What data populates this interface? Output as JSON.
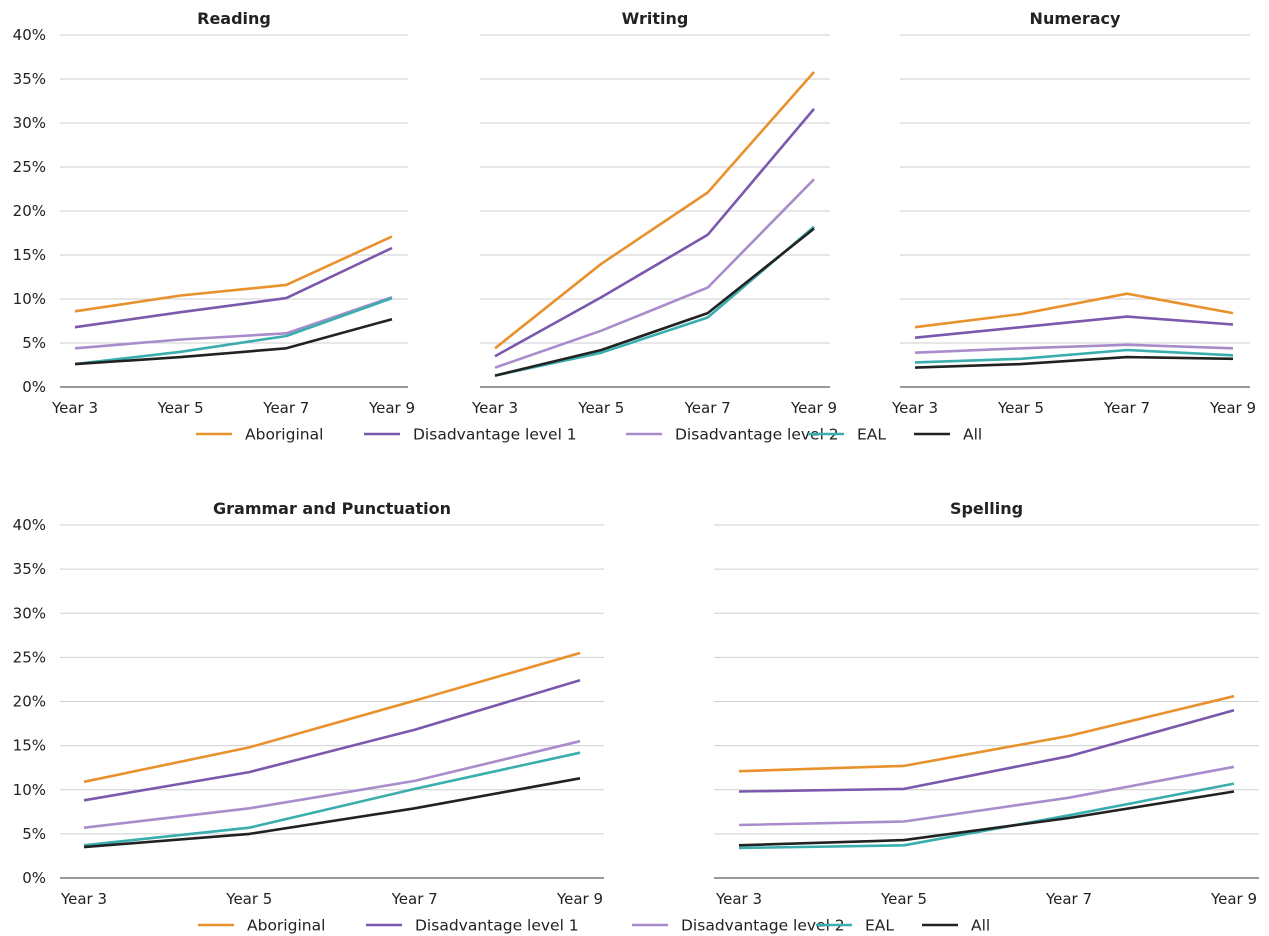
{
  "chart_data": [
    {
      "type": "line",
      "title": "Reading",
      "categories": [
        "Year 3",
        "Year 5",
        "Year 7",
        "Year 9"
      ],
      "ylim": [
        0,
        40
      ],
      "yticks": [
        "0%",
        "5%",
        "10%",
        "15%",
        "20%",
        "25%",
        "30%",
        "35%",
        "40%"
      ],
      "grid": true,
      "series": [
        {
          "name": "Aboriginal",
          "color": "#e8912d",
          "values": [
            8.6,
            10.4,
            11.6,
            17.1
          ]
        },
        {
          "name": "Disadvantage level 1",
          "color": "#7a58ac",
          "values": [
            6.8,
            8.5,
            10.1,
            15.8
          ]
        },
        {
          "name": "Disadvantage level 2",
          "color": "#a98ccb",
          "values": [
            4.4,
            5.4,
            6.1,
            10.2
          ]
        },
        {
          "name": "EAL",
          "color": "#3aaeae",
          "values": [
            2.6,
            4.0,
            5.8,
            10.1
          ]
        },
        {
          "name": "All",
          "color": "#222222",
          "values": [
            2.6,
            3.4,
            4.4,
            7.7
          ]
        }
      ]
    },
    {
      "type": "line",
      "title": "Writing",
      "categories": [
        "Year 3",
        "Year 5",
        "Year 7",
        "Year 9"
      ],
      "ylim": [
        0,
        40
      ],
      "grid": true,
      "series": [
        {
          "name": "Aboriginal",
          "color": "#e8912d",
          "values": [
            4.4,
            14.0,
            22.1,
            35.8
          ]
        },
        {
          "name": "Disadvantage level 1",
          "color": "#7a58ac",
          "values": [
            3.5,
            10.2,
            17.3,
            31.6
          ]
        },
        {
          "name": "Disadvantage level 2",
          "color": "#a98ccb",
          "values": [
            2.2,
            6.4,
            11.3,
            23.6
          ]
        },
        {
          "name": "EAL",
          "color": "#3aaeae",
          "values": [
            1.3,
            3.9,
            7.9,
            18.2
          ]
        },
        {
          "name": "All",
          "color": "#222222",
          "values": [
            1.3,
            4.2,
            8.4,
            18.0
          ]
        }
      ]
    },
    {
      "type": "line",
      "title": "Numeracy",
      "categories": [
        "Year 3",
        "Year 5",
        "Year 7",
        "Year 9"
      ],
      "ylim": [
        0,
        40
      ],
      "grid": true,
      "series": [
        {
          "name": "Aboriginal",
          "color": "#e8912d",
          "values": [
            6.8,
            8.3,
            10.6,
            8.4
          ]
        },
        {
          "name": "Disadvantage level 1",
          "color": "#7a58ac",
          "values": [
            5.6,
            6.8,
            8.0,
            7.1
          ]
        },
        {
          "name": "Disadvantage level 2",
          "color": "#a98ccb",
          "values": [
            3.9,
            4.4,
            4.8,
            4.4
          ]
        },
        {
          "name": "EAL",
          "color": "#3aaeae",
          "values": [
            2.8,
            3.2,
            4.2,
            3.6
          ]
        },
        {
          "name": "All",
          "color": "#222222",
          "values": [
            2.2,
            2.6,
            3.4,
            3.2
          ]
        }
      ]
    },
    {
      "type": "line",
      "title": "Grammar and Punctuation",
      "categories": [
        "Year 3",
        "Year 5",
        "Year 7",
        "Year 9"
      ],
      "ylim": [
        0,
        40
      ],
      "yticks": [
        "0%",
        "5%",
        "10%",
        "15%",
        "20%",
        "25%",
        "30%",
        "35%",
        "40%"
      ],
      "grid": true,
      "series": [
        {
          "name": "Aboriginal",
          "color": "#e8912d",
          "values": [
            10.9,
            14.8,
            20.1,
            25.5
          ]
        },
        {
          "name": "Disadvantage level 1",
          "color": "#7a58ac",
          "values": [
            8.8,
            12.0,
            16.8,
            22.4
          ]
        },
        {
          "name": "Disadvantage level 2",
          "color": "#a98ccb",
          "values": [
            5.7,
            7.9,
            11.0,
            15.5
          ]
        },
        {
          "name": "EAL",
          "color": "#3aaeae",
          "values": [
            3.7,
            5.7,
            10.1,
            14.2
          ]
        },
        {
          "name": "All",
          "color": "#222222",
          "values": [
            3.5,
            5.0,
            7.9,
            11.3
          ]
        }
      ]
    },
    {
      "type": "line",
      "title": "Spelling",
      "categories": [
        "Year 3",
        "Year 5",
        "Year 7",
        "Year 9"
      ],
      "ylim": [
        0,
        40
      ],
      "grid": true,
      "series": [
        {
          "name": "Aboriginal",
          "color": "#e8912d",
          "values": [
            12.1,
            12.7,
            16.1,
            20.6
          ]
        },
        {
          "name": "Disadvantage level 1",
          "color": "#7a58ac",
          "values": [
            9.8,
            10.1,
            13.8,
            19.0
          ]
        },
        {
          "name": "Disadvantage level 2",
          "color": "#a98ccb",
          "values": [
            6.0,
            6.4,
            9.1,
            12.6
          ]
        },
        {
          "name": "EAL",
          "color": "#3aaeae",
          "values": [
            3.4,
            3.7,
            7.1,
            10.7
          ]
        },
        {
          "name": "All",
          "color": "#222222",
          "values": [
            3.7,
            4.3,
            6.8,
            9.8
          ]
        }
      ]
    }
  ],
  "legends": [
    {
      "items": [
        {
          "label": "Aboriginal",
          "color": "#e8912d"
        },
        {
          "label": "Disadvantage level 1",
          "color": "#7a58ac"
        },
        {
          "label": "Disadvantage level 2",
          "color": "#a98ccb"
        },
        {
          "label": "EAL",
          "color": "#3aaeae"
        },
        {
          "label": "All",
          "color": "#222222"
        }
      ]
    },
    {
      "items": [
        {
          "label": "Aboriginal",
          "color": "#e8912d"
        },
        {
          "label": "Disadvantage level 1",
          "color": "#7a58ac"
        },
        {
          "label": "Disadvantage level 2",
          "color": "#a98ccb"
        },
        {
          "label": "EAL",
          "color": "#3aaeae"
        },
        {
          "label": "All",
          "color": "#222222"
        }
      ]
    }
  ]
}
